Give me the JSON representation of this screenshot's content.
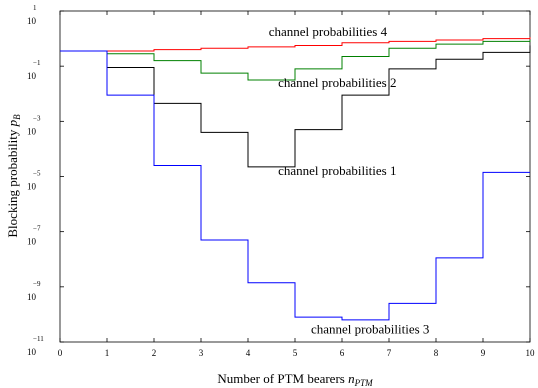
{
  "chart_data": {
    "type": "line",
    "xlabel": "Number of PTM bearers",
    "xlabel_var": "n",
    "xlabel_sub": "PTM",
    "ylabel": "Blocking probability",
    "ylabel_var": "p",
    "ylabel_sub": "B",
    "yscale": "log",
    "xlim": [
      0,
      10
    ],
    "ylim_exp": [
      -11,
      1
    ],
    "xticks": [
      "0",
      "1",
      "2",
      "3",
      "4",
      "5",
      "6",
      "7",
      "8",
      "9",
      "10"
    ],
    "yticks": [
      {
        "base": "10",
        "exp": "1",
        "value_exp": 1
      },
      {
        "base": "10",
        "exp": "−1",
        "value_exp": -1
      },
      {
        "base": "10",
        "exp": "−3",
        "value_exp": -3
      },
      {
        "base": "10",
        "exp": "−5",
        "value_exp": -5
      },
      {
        "base": "10",
        "exp": "−7",
        "value_exp": -7
      },
      {
        "base": "10",
        "exp": "−9",
        "value_exp": -9
      },
      {
        "base": "10",
        "exp": "−11",
        "value_exp": -11
      }
    ],
    "grid": false,
    "step": "post",
    "x": [
      0,
      1,
      2,
      3,
      4,
      5,
      6,
      7,
      8,
      9,
      10
    ],
    "series": [
      {
        "color": "#ff0000",
        "log10_values": [
          -0.45,
          -0.45,
          -0.4,
          -0.35,
          -0.3,
          -0.25,
          -0.15,
          -0.1,
          -0.05,
          0.0,
          0.05
        ]
      },
      {
        "color": "#008000",
        "log10_values": [
          -0.45,
          -0.55,
          -0.8,
          -1.25,
          -1.5,
          -1.1,
          -0.65,
          -0.35,
          -0.2,
          -0.1,
          -0.05
        ]
      },
      {
        "color": "#000000",
        "log10_values": [
          -0.45,
          -1.05,
          -2.35,
          -3.4,
          -4.65,
          -3.3,
          -2.05,
          -1.1,
          -0.75,
          -0.5,
          -0.25
        ]
      },
      {
        "color": "#0000ff",
        "log10_values": [
          -0.45,
          -2.05,
          -4.6,
          -7.3,
          -8.85,
          -10.1,
          -10.2,
          -9.6,
          -7.95,
          -4.85,
          -4.85
        ]
      }
    ],
    "annotations": [
      {
        "text": "channel probabilities 4",
        "x": 5.7,
        "y_exp": 0.1
      },
      {
        "text": "channel probabilities 2",
        "x": 5.9,
        "y_exp": -1.75
      },
      {
        "text": "channel probabilities 1",
        "x": 5.9,
        "y_exp": -4.95
      },
      {
        "text": "channel probabilities 3",
        "x": 6.6,
        "y_exp": -10.7
      }
    ]
  }
}
